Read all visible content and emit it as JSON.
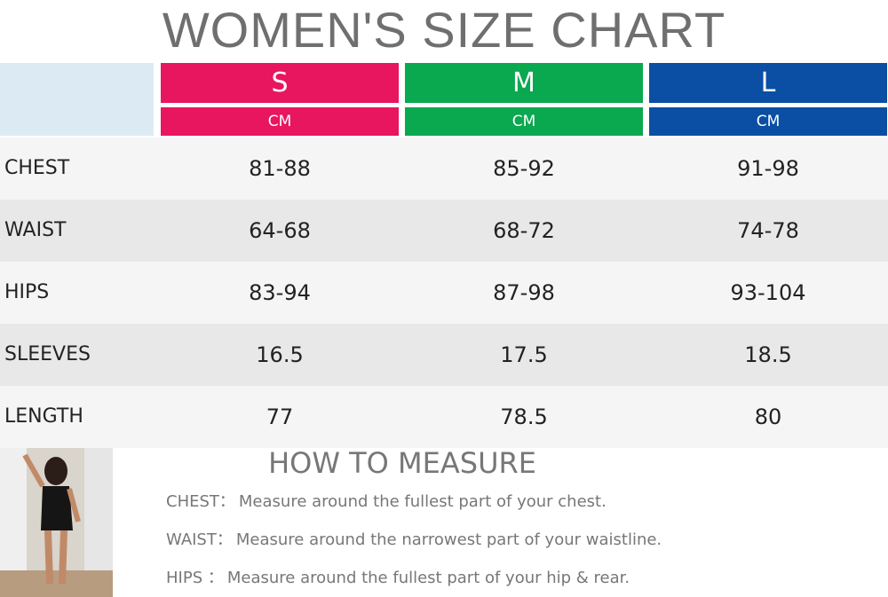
{
  "title": "WOMEN'S SIZE CHART",
  "table": {
    "columns": [
      {
        "size": "S",
        "unit": "CM",
        "color": "#e8155f"
      },
      {
        "size": "M",
        "unit": "CM",
        "color": "#0aa84f"
      },
      {
        "size": "L",
        "unit": "CM",
        "color": "#0a4fa3"
      }
    ],
    "rows": [
      {
        "label": "CHEST",
        "values": [
          "81-88",
          "85-92",
          "91-98"
        ]
      },
      {
        "label": "WAIST",
        "values": [
          "64-68",
          "68-72",
          "74-78"
        ]
      },
      {
        "label": "HIPS",
        "values": [
          "83-94",
          "87-98",
          "93-104"
        ]
      },
      {
        "label": "SLEEVES",
        "values": [
          "16.5",
          "17.5",
          "18.5"
        ]
      },
      {
        "label": "LENGTH",
        "values": [
          "77",
          "78.5",
          "80"
        ]
      }
    ]
  },
  "how_to_measure": {
    "title": "HOW TO MEASURE",
    "items": [
      {
        "label": "CHEST：",
        "text": "Measure around the fullest part of your chest."
      },
      {
        "label": "WAIST：",
        "text": "Measure around the narrowest part of your waistline."
      },
      {
        "label": "HIPS ：",
        "text": "Measure around the fullest part of your hip & rear."
      }
    ]
  }
}
